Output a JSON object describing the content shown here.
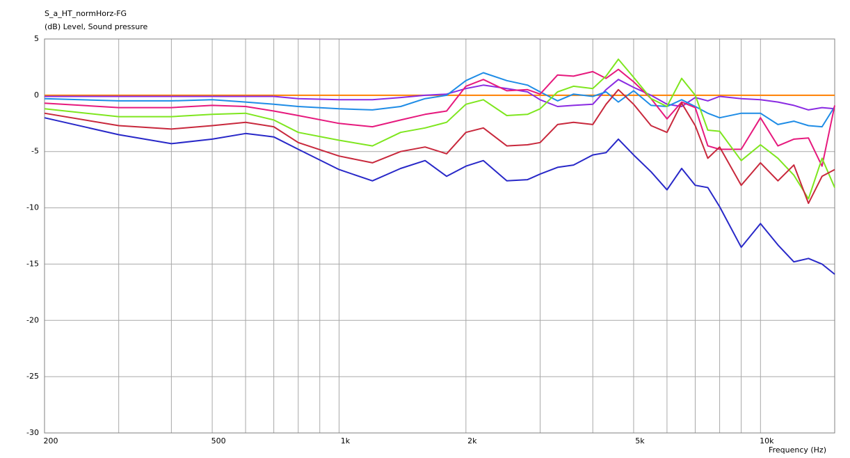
{
  "chart_data": {
    "type": "line",
    "title": "S_a_HT_normHorz-FG",
    "subtitle": "(dB)  Level, Sound pressure",
    "x_label": "Frequency  (Hz)",
    "log_x": true,
    "grid": true,
    "xlim": [
      200,
      15000
    ],
    "ylim": [
      -30,
      5
    ],
    "yticks": [
      5,
      0,
      -5,
      -10,
      -15,
      -20,
      -25,
      -30
    ],
    "xticks": [
      200,
      500,
      {
        "value": 1000,
        "label": "1k"
      },
      {
        "value": 2000,
        "label": "2k"
      },
      {
        "value": 5000,
        "label": "5k"
      },
      {
        "value": 10000,
        "label": "10k"
      }
    ],
    "xminor": [
      300,
      400,
      600,
      700,
      800,
      900,
      3000,
      4000,
      6000,
      7000,
      8000,
      9000
    ],
    "x": [
      200,
      300,
      400,
      500,
      600,
      700,
      800,
      1000,
      1200,
      1400,
      1600,
      1800,
      2000,
      2200,
      2500,
      2800,
      3000,
      3300,
      3600,
      4000,
      4300,
      4600,
      5000,
      5500,
      6000,
      6500,
      7000,
      7500,
      8000,
      9000,
      10000,
      11000,
      12000,
      13000,
      14000,
      15000
    ],
    "series": [
      {
        "color": "#ff8000",
        "values": [
          0,
          0,
          0,
          0,
          0,
          0,
          0,
          0,
          0,
          0,
          0,
          0,
          0,
          0,
          0,
          0,
          0,
          0,
          0,
          0,
          0,
          0,
          0,
          0,
          0,
          0,
          0,
          0,
          0,
          0,
          0,
          0,
          0,
          0,
          0,
          0
        ]
      },
      {
        "color": "#8a2be2",
        "values": [
          -0.1,
          -0.1,
          -0.1,
          -0.1,
          -0.1,
          -0.1,
          -0.3,
          -0.4,
          -0.4,
          -0.2,
          0,
          0.1,
          0.6,
          0.9,
          0.6,
          0.3,
          -0.4,
          -1.0,
          -0.9,
          -0.8,
          0.5,
          1.4,
          0.7,
          0,
          -0.8,
          -1.0,
          -0.2,
          -0.5,
          -0.1,
          -0.3,
          -0.4,
          -0.6,
          -0.9,
          -1.3,
          -1.1,
          -1.2
        ]
      },
      {
        "color": "#1e8ce6",
        "values": [
          -0.3,
          -0.5,
          -0.5,
          -0.4,
          -0.6,
          -0.8,
          -1.0,
          -1.2,
          -1.3,
          -1.0,
          -0.3,
          0,
          1.3,
          2.0,
          1.3,
          0.9,
          0.3,
          -0.5,
          0.1,
          -0.1,
          0.3,
          -0.6,
          0.4,
          -0.9,
          -1.0,
          -0.4,
          -1.0,
          -1.6,
          -2.0,
          -1.6,
          -1.6,
          -2.6,
          -2.3,
          -2.7,
          -2.8,
          -1.0
        ]
      },
      {
        "color": "#e6197d",
        "values": [
          -0.7,
          -1.1,
          -1.1,
          -0.9,
          -1.0,
          -1.4,
          -1.8,
          -2.5,
          -2.8,
          -2.2,
          -1.7,
          -1.4,
          0.8,
          1.4,
          0.4,
          0.5,
          0.1,
          1.8,
          1.7,
          2.1,
          1.5,
          2.3,
          1.2,
          -0.3,
          -2.1,
          -0.6,
          -1.1,
          -4.5,
          -4.8,
          -4.8,
          -2.0,
          -4.5,
          -3.9,
          -3.8,
          -6.3,
          -0.9
        ]
      },
      {
        "color": "#7ee61e",
        "values": [
          -1.2,
          -1.9,
          -1.9,
          -1.7,
          -1.6,
          -2.2,
          -3.3,
          -4.0,
          -4.5,
          -3.3,
          -2.9,
          -2.4,
          -0.8,
          -0.4,
          -1.8,
          -1.7,
          -1.2,
          0.3,
          0.8,
          0.6,
          1.7,
          3.2,
          1.6,
          -0.3,
          -1.0,
          1.5,
          0,
          -3.1,
          -3.2,
          -5.8,
          -4.4,
          -5.6,
          -7.1,
          -9.2,
          -5.6,
          -8.2
        ]
      },
      {
        "color": "#c8283c",
        "values": [
          -1.6,
          -2.7,
          -3.0,
          -2.7,
          -2.4,
          -2.8,
          -4.2,
          -5.4,
          -6.0,
          -5.0,
          -4.6,
          -5.2,
          -3.3,
          -2.9,
          -4.5,
          -4.4,
          -4.2,
          -2.6,
          -2.4,
          -2.6,
          -0.8,
          0.5,
          -0.8,
          -2.7,
          -3.3,
          -0.7,
          -2.7,
          -5.6,
          -4.6,
          -8.0,
          -6.0,
          -7.6,
          -6.2,
          -9.6,
          -7.2,
          -6.6
        ]
      },
      {
        "color": "#2828c8",
        "values": [
          -2.0,
          -3.5,
          -4.3,
          -3.9,
          -3.4,
          -3.7,
          -4.8,
          -6.6,
          -7.6,
          -6.5,
          -5.8,
          -7.2,
          -6.3,
          -5.8,
          -7.6,
          -7.5,
          -7.0,
          -6.4,
          -6.2,
          -5.3,
          -5.1,
          -3.9,
          -5.3,
          -6.8,
          -8.4,
          -6.5,
          -8.0,
          -8.2,
          -9.9,
          -13.5,
          -11.4,
          -13.3,
          -14.8,
          -14.5,
          -15.0,
          -15.9
        ]
      }
    ]
  }
}
